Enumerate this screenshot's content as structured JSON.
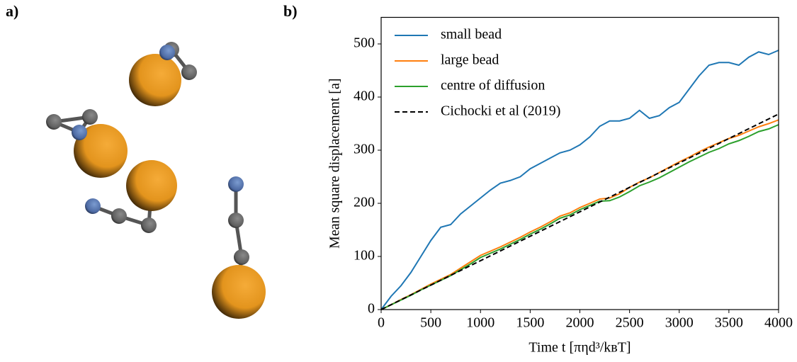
{
  "panel_labels": {
    "a": "a)",
    "b": "b)"
  },
  "chart_data": {
    "type": "line",
    "xlabel": "Time t [πηd³/kʙT]",
    "ylabel": "Mean square displacement [a]",
    "xlim": [
      0,
      4000
    ],
    "ylim": [
      0,
      550
    ],
    "xticks": [
      0,
      500,
      1000,
      1500,
      2000,
      2500,
      3000,
      3500,
      4000
    ],
    "yticks": [
      0,
      100,
      200,
      300,
      400,
      500
    ],
    "legend": "upper left",
    "x": [
      0,
      100,
      200,
      300,
      400,
      500,
      600,
      700,
      800,
      900,
      1000,
      1100,
      1200,
      1300,
      1400,
      1500,
      1600,
      1700,
      1800,
      1900,
      2000,
      2100,
      2200,
      2300,
      2400,
      2500,
      2600,
      2700,
      2800,
      2900,
      3000,
      3100,
      3200,
      3300,
      3400,
      3500,
      3600,
      3700,
      3800,
      3900,
      4000
    ],
    "series": [
      {
        "name": "small bead",
        "color": "#1f77b4",
        "values": [
          0,
          25,
          45,
          70,
          100,
          130,
          155,
          160,
          180,
          195,
          210,
          225,
          238,
          243,
          250,
          265,
          275,
          285,
          295,
          300,
          310,
          325,
          345,
          355,
          355,
          360,
          375,
          360,
          365,
          380,
          390,
          415,
          440,
          460,
          465,
          465,
          460,
          475,
          485,
          480,
          488
        ]
      },
      {
        "name": "large bead",
        "color": "#ff7f0e",
        "values": [
          0,
          9,
          19,
          28,
          38,
          48,
          57,
          66,
          78,
          90,
          102,
          110,
          118,
          127,
          136,
          146,
          155,
          165,
          176,
          182,
          192,
          200,
          208,
          210,
          218,
          230,
          240,
          248,
          258,
          268,
          278,
          287,
          297,
          306,
          314,
          322,
          328,
          336,
          344,
          350,
          357
        ]
      },
      {
        "name": "centre of diffusion",
        "color": "#2ca02c",
        "values": [
          0,
          9,
          18,
          27,
          37,
          46,
          55,
          64,
          75,
          86,
          98,
          106,
          114,
          123,
          132,
          142,
          151,
          161,
          172,
          178,
          188,
          196,
          204,
          205,
          212,
          222,
          233,
          240,
          248,
          258,
          268,
          278,
          287,
          296,
          303,
          312,
          318,
          326,
          335,
          340,
          348
        ]
      },
      {
        "name": "Cichocki et al (2019)",
        "color": "#000000",
        "dashed": true,
        "x": [
          0,
          4000
        ],
        "values": [
          0,
          368
        ]
      }
    ]
  }
}
